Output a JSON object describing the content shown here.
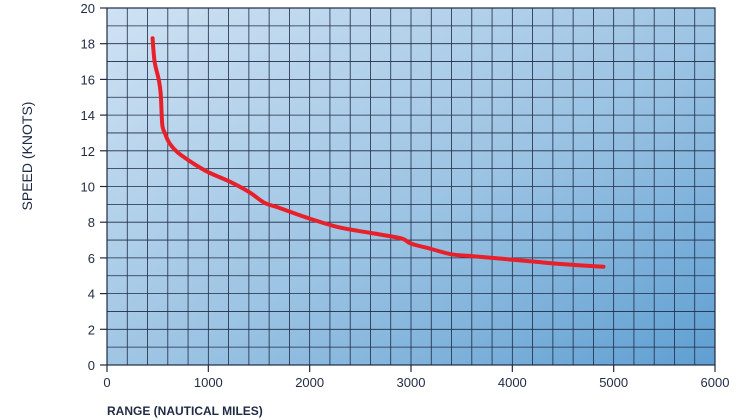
{
  "chart_data": {
    "type": "line",
    "title": "",
    "xlabel": "RANGE (NAUTICAL MILES)",
    "ylabel": "SPEED (KNOTS)",
    "xlim": [
      0,
      6000
    ],
    "ylim": [
      0,
      20
    ],
    "x_ticks": [
      0,
      1000,
      2000,
      3000,
      4000,
      5000,
      6000
    ],
    "y_ticks": [
      0,
      2,
      4,
      6,
      8,
      10,
      12,
      14,
      16,
      18,
      20
    ],
    "x_tick_labels": [
      "0",
      "1000",
      "2000",
      "3000",
      "4000",
      "5000",
      "6000"
    ],
    "y_tick_labels": [
      "0",
      "2",
      "4",
      "6",
      "8",
      "10",
      "12",
      "14",
      "16",
      "18",
      "20"
    ],
    "grid": true,
    "minor_grid_x_step": 200,
    "minor_grid_y_step": 1,
    "series": [
      {
        "color": "#e8202a",
        "x": [
          450,
          470,
          510,
          530,
          545,
          570,
          620,
          700,
          850,
          1000,
          1200,
          1400,
          1550,
          1700,
          2000,
          2300,
          2600,
          2900,
          3000,
          3200,
          3400,
          3600,
          3800,
          4000,
          4200,
          4500,
          4900
        ],
        "y": [
          18.3,
          17.0,
          16.0,
          15.2,
          13.5,
          13.0,
          12.4,
          11.9,
          11.3,
          10.8,
          10.3,
          9.7,
          9.1,
          8.8,
          8.2,
          7.7,
          7.4,
          7.1,
          6.8,
          6.5,
          6.2,
          6.1,
          6.0,
          5.9,
          5.8,
          5.65,
          5.5
        ]
      }
    ],
    "background_colors": [
      "#cfe2f3",
      "#9bc3e3",
      "#5f9fd2"
    ]
  }
}
